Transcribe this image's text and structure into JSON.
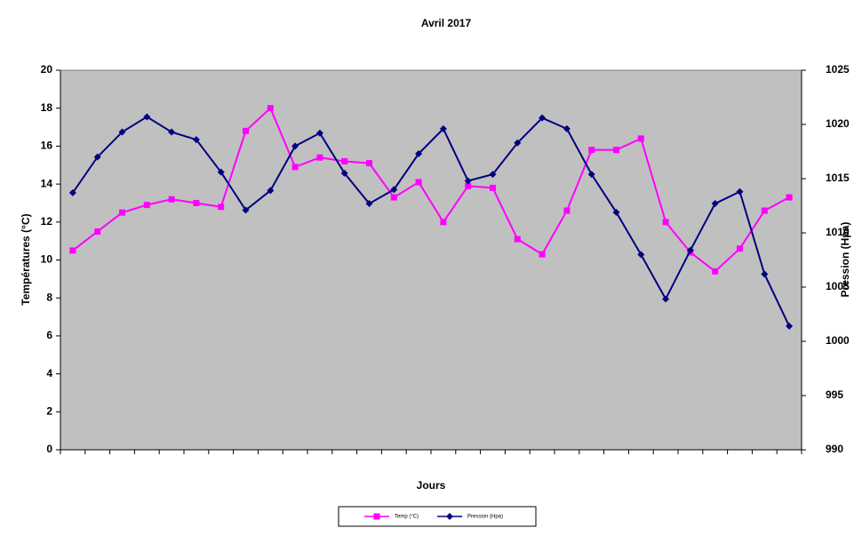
{
  "chart_data": {
    "type": "line",
    "title": "Avril 2017",
    "x_label": "Jours",
    "y_label": "Températures (°C)",
    "y2_label": "Pression (Hpa)",
    "categories": [
      null,
      null,
      null,
      null,
      null,
      null,
      null,
      null,
      null,
      null,
      null,
      null,
      null,
      null,
      null,
      null,
      null,
      null,
      null,
      null,
      null,
      null,
      null,
      null,
      null,
      null,
      null,
      null,
      null,
      null
    ],
    "ylim": [
      0,
      20
    ],
    "yticks": [
      0,
      2,
      4,
      6,
      8,
      10,
      12,
      14,
      16,
      18,
      20
    ],
    "y2lim": [
      990,
      1025
    ],
    "y2ticks": [
      990,
      995,
      1000,
      1005,
      1010,
      1015,
      1020,
      1025
    ],
    "plot_background": "#c0c0c0",
    "legend": "bottom",
    "series": [
      {
        "name": "Temp (°C)",
        "color": "#ff00ff",
        "marker": "square",
        "values": [
          10.5,
          11.5,
          12.5,
          12.9,
          13.2,
          13.0,
          12.8,
          16.8,
          18.0,
          14.9,
          15.4,
          15.2,
          15.1,
          13.3,
          14.1,
          12.0,
          13.9,
          13.8,
          11.1,
          10.3,
          12.6,
          15.8,
          15.8,
          16.4,
          12.0,
          10.4,
          9.4,
          10.6,
          12.6,
          13.3
        ]
      },
      {
        "name": "Pression (Hpa)",
        "color": "#000080",
        "marker": "diamond",
        "axis": "y2",
        "values": [
          1013.7,
          1017.0,
          1019.3,
          1020.7,
          1019.3,
          1018.6,
          1015.6,
          1012.1,
          1013.9,
          1018.0,
          1019.2,
          1015.5,
          1012.7,
          1014.0,
          1017.3,
          1019.6,
          1014.8,
          1015.4,
          1018.3,
          1020.6,
          1019.6,
          1015.4,
          1011.9,
          1008.0,
          1003.9,
          1008.4,
          1012.7,
          1013.8,
          1006.2,
          1001.4
        ]
      }
    ]
  }
}
